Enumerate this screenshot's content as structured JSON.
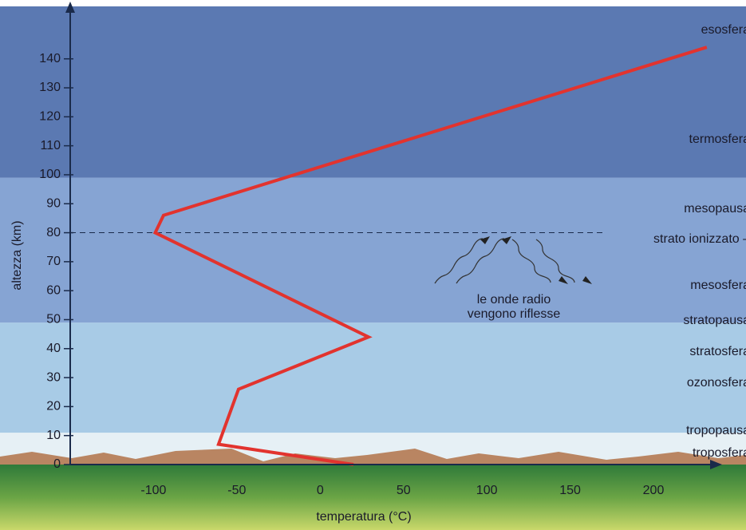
{
  "chart_data": {
    "type": "line",
    "x_label": "temperatura (°C)",
    "y_label": "altezza (km)",
    "x": [
      20,
      -61,
      -49,
      29,
      -99,
      -94,
      232
    ],
    "values": [
      0,
      7,
      26,
      44,
      80,
      86,
      144
    ],
    "color": "#e2332e",
    "xlim": [
      -150,
      245
    ],
    "ylim": [
      0,
      157
    ],
    "xticks": [
      -100,
      -50,
      0,
      50,
      100,
      150,
      200
    ],
    "yticks": [
      0,
      10,
      20,
      30,
      40,
      50,
      60,
      70,
      80,
      90,
      100,
      110,
      120,
      130,
      140
    ],
    "layers": [
      {
        "from": 0,
        "to": 11,
        "color": "#e6f0f5"
      },
      {
        "from": 11,
        "to": 49,
        "color": "#a8cbe6"
      },
      {
        "from": 49,
        "to": 99,
        "color": "#86a4d3"
      },
      {
        "from": 99,
        "to": 157,
        "color": "#5b79b2"
      }
    ],
    "reference_line": 80,
    "layer_names": [
      "esosfera",
      "termosfera",
      "mesopausa",
      "strato ionizzato –",
      "mesosfera",
      "stratopausa",
      "stratosfera",
      "ozonosfera",
      "tropopausa",
      "troposfera"
    ],
    "annotation": [
      "le onde radio",
      "vengono riflesse"
    ]
  }
}
